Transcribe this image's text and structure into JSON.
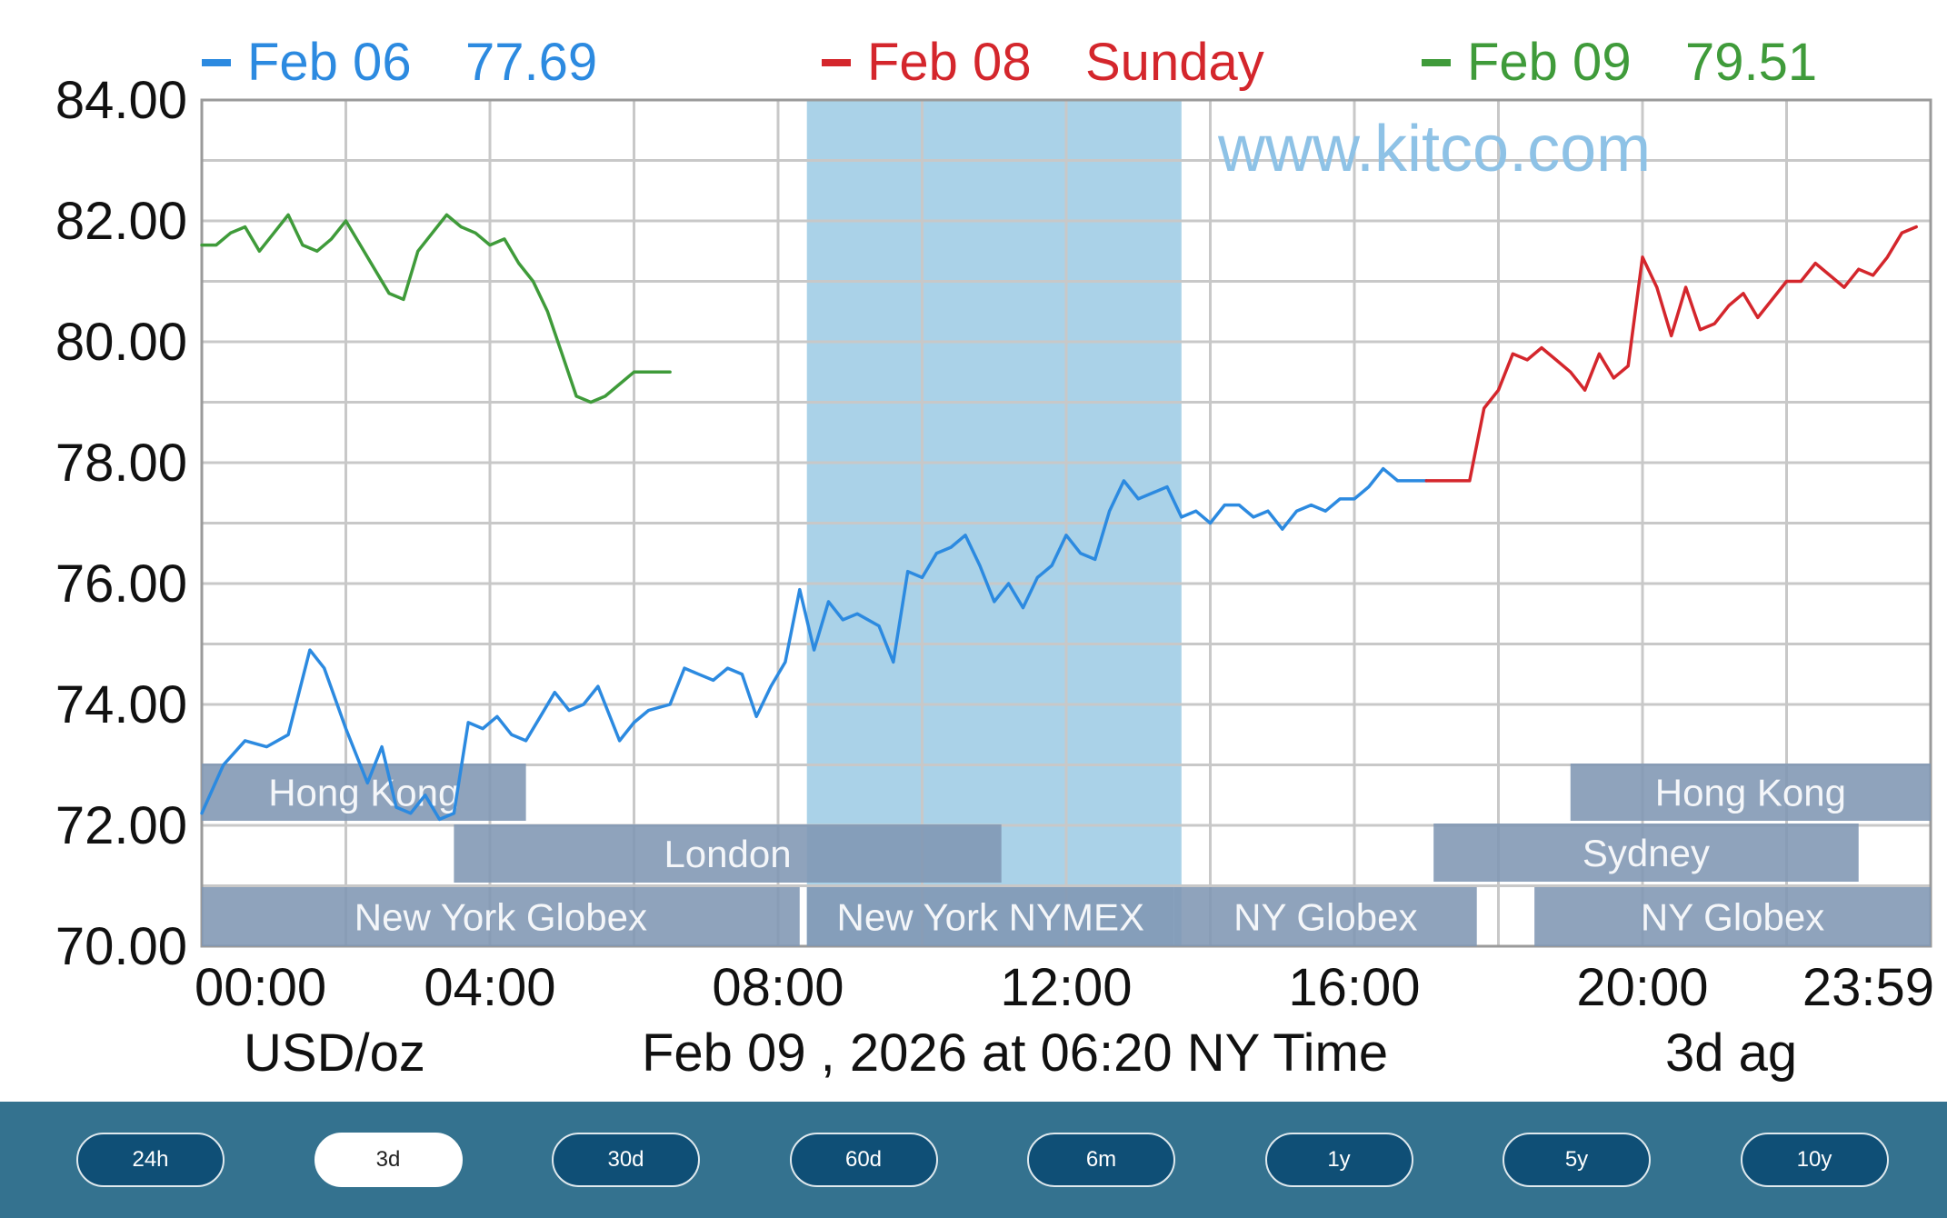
{
  "watermark": "www.kitco.com",
  "colors": {
    "feb06": "#2c8ae0",
    "feb08": "#d4262c",
    "feb09": "#3f9b3a",
    "nymex_band": "#aad2e8",
    "session_box": "#7f96b3",
    "grid": "#c8c8c8"
  },
  "footer": {
    "unit": "USD/oz",
    "timestamp": "Feb 09 , 2026 at 06:20 NY Time",
    "period": "3d ag"
  },
  "legend": [
    {
      "date": "Feb 06",
      "value": "77.69",
      "color": "#2c8ae0"
    },
    {
      "date": "Feb 08",
      "value": "Sunday",
      "color": "#d4262c"
    },
    {
      "date": "Feb 09",
      "value": "79.51",
      "color": "#3f9b3a"
    }
  ],
  "sessions": [
    {
      "label": "Hong Kong",
      "start": 0.0,
      "end": 4.5
    },
    {
      "label": "Hong Kong",
      "start": 19.0,
      "end": 24.0
    },
    {
      "label": "London",
      "start": 3.5,
      "end": 11.1
    },
    {
      "label": "Sydney",
      "start": 17.1,
      "end": 23.0
    },
    {
      "label": "New York Globex",
      "start": 0.0,
      "end": 8.3
    },
    {
      "label": "New York NYMEX",
      "start": 8.4,
      "end": 13.5
    },
    {
      "label": "NY Globex",
      "start": 13.5,
      "end": 17.7
    },
    {
      "label": "NY Globex",
      "start": 18.5,
      "end": 24.0
    }
  ],
  "range_buttons": [
    {
      "label": "24h",
      "active": false
    },
    {
      "label": "3d",
      "active": true
    },
    {
      "label": "30d",
      "active": false
    },
    {
      "label": "60d",
      "active": false
    },
    {
      "label": "6m",
      "active": false
    },
    {
      "label": "1y",
      "active": false
    },
    {
      "label": "5y",
      "active": false
    },
    {
      "label": "10y",
      "active": false
    }
  ],
  "chart_data": {
    "type": "line",
    "title": "",
    "xlabel": "",
    "ylabel": "USD/oz",
    "xlim": [
      0,
      24
    ],
    "ylim": [
      70,
      84
    ],
    "grid": true,
    "legend_position": "top",
    "x_ticks": [
      {
        "value": 0,
        "label": "00:00"
      },
      {
        "value": 4,
        "label": "04:00"
      },
      {
        "value": 8,
        "label": "08:00"
      },
      {
        "value": 12,
        "label": "12:00"
      },
      {
        "value": 16,
        "label": "16:00"
      },
      {
        "value": 20,
        "label": "20:00"
      },
      {
        "value": 24,
        "label": "23:59"
      }
    ],
    "y_ticks": [
      {
        "value": 84,
        "label": "84.00"
      },
      {
        "value": 82,
        "label": "82.00"
      },
      {
        "value": 80,
        "label": "80.00"
      },
      {
        "value": 78,
        "label": "78.00"
      },
      {
        "value": 76,
        "label": "76.00"
      },
      {
        "value": 74,
        "label": "74.00"
      },
      {
        "value": 72,
        "label": "72.00"
      },
      {
        "value": 70,
        "label": "70.00"
      }
    ],
    "shaded_range": {
      "x_start": 8.4,
      "x_end": 13.6
    },
    "series": [
      {
        "name": "Feb 06",
        "color": "#2c8ae0",
        "x": [
          0.0,
          0.3,
          0.6,
          0.9,
          1.2,
          1.5,
          1.7,
          2.0,
          2.3,
          2.5,
          2.7,
          2.9,
          3.1,
          3.3,
          3.5,
          3.7,
          3.9,
          4.1,
          4.3,
          4.5,
          4.7,
          4.9,
          5.1,
          5.3,
          5.5,
          5.8,
          6.0,
          6.2,
          6.5,
          6.7,
          6.9,
          7.1,
          7.3,
          7.5,
          7.7,
          7.9,
          8.1,
          8.3,
          8.5,
          8.7,
          8.9,
          9.1,
          9.4,
          9.6,
          9.8,
          10.0,
          10.2,
          10.4,
          10.6,
          10.8,
          11.0,
          11.2,
          11.4,
          11.6,
          11.8,
          12.0,
          12.2,
          12.4,
          12.6,
          12.8,
          13.0,
          13.2,
          13.4,
          13.6,
          13.8,
          14.0,
          14.2,
          14.4,
          14.6,
          14.8,
          15.0,
          15.2,
          15.4,
          15.6,
          15.8,
          16.0,
          16.2,
          16.4,
          16.6,
          16.8,
          17.0
        ],
        "y": [
          72.2,
          73.0,
          73.4,
          73.3,
          73.5,
          74.9,
          74.6,
          73.6,
          72.7,
          73.3,
          72.3,
          72.2,
          72.5,
          72.1,
          72.2,
          73.7,
          73.6,
          73.8,
          73.5,
          73.4,
          73.8,
          74.2,
          73.9,
          74.0,
          74.3,
          73.4,
          73.7,
          73.9,
          74.0,
          74.6,
          74.5,
          74.4,
          74.6,
          74.5,
          73.8,
          74.3,
          74.7,
          75.9,
          74.9,
          75.7,
          75.4,
          75.5,
          75.3,
          74.7,
          76.2,
          76.1,
          76.5,
          76.6,
          76.8,
          76.3,
          75.7,
          76.0,
          75.6,
          76.1,
          76.3,
          76.8,
          76.5,
          76.4,
          77.2,
          77.7,
          77.4,
          77.5,
          77.6,
          77.1,
          77.2,
          77.0,
          77.3,
          77.3,
          77.1,
          77.2,
          76.9,
          77.2,
          77.3,
          77.2,
          77.4,
          77.4,
          77.6,
          77.9,
          77.7,
          77.7,
          77.7
        ]
      },
      {
        "name": "Feb 08",
        "color": "#d4262c",
        "x": [
          17.0,
          17.3,
          17.6,
          17.8,
          18.0,
          18.2,
          18.4,
          18.6,
          18.8,
          19.0,
          19.2,
          19.4,
          19.6,
          19.8,
          20.0,
          20.2,
          20.4,
          20.6,
          20.8,
          21.0,
          21.2,
          21.4,
          21.6,
          21.8,
          22.0,
          22.2,
          22.4,
          22.6,
          22.8,
          23.0,
          23.2,
          23.4,
          23.6,
          23.8
        ],
        "y": [
          77.7,
          77.7,
          77.7,
          78.9,
          79.2,
          79.8,
          79.7,
          79.9,
          79.7,
          79.5,
          79.2,
          79.8,
          79.4,
          79.6,
          81.4,
          80.9,
          80.1,
          80.9,
          80.2,
          80.3,
          80.6,
          80.8,
          80.4,
          80.7,
          81.0,
          81.0,
          81.3,
          81.1,
          80.9,
          81.2,
          81.1,
          81.4,
          81.8,
          81.9
        ]
      },
      {
        "name": "Feb 09",
        "color": "#3f9b3a",
        "x": [
          0.0,
          0.2,
          0.4,
          0.6,
          0.8,
          1.0,
          1.2,
          1.4,
          1.6,
          1.8,
          2.0,
          2.2,
          2.4,
          2.6,
          2.8,
          3.0,
          3.2,
          3.4,
          3.6,
          3.8,
          4.0,
          4.2,
          4.4,
          4.6,
          4.8,
          5.0,
          5.2,
          5.4,
          5.6,
          5.8,
          6.0,
          6.2,
          6.4,
          6.5
        ],
        "y": [
          81.6,
          81.6,
          81.8,
          81.9,
          81.5,
          81.8,
          82.1,
          81.6,
          81.5,
          81.7,
          82.0,
          81.6,
          81.2,
          80.8,
          80.7,
          81.5,
          81.8,
          82.1,
          81.9,
          81.8,
          81.6,
          81.7,
          81.3,
          81.0,
          80.5,
          79.8,
          79.1,
          79.0,
          79.1,
          79.3,
          79.5,
          79.5,
          79.5,
          79.5
        ]
      }
    ]
  }
}
